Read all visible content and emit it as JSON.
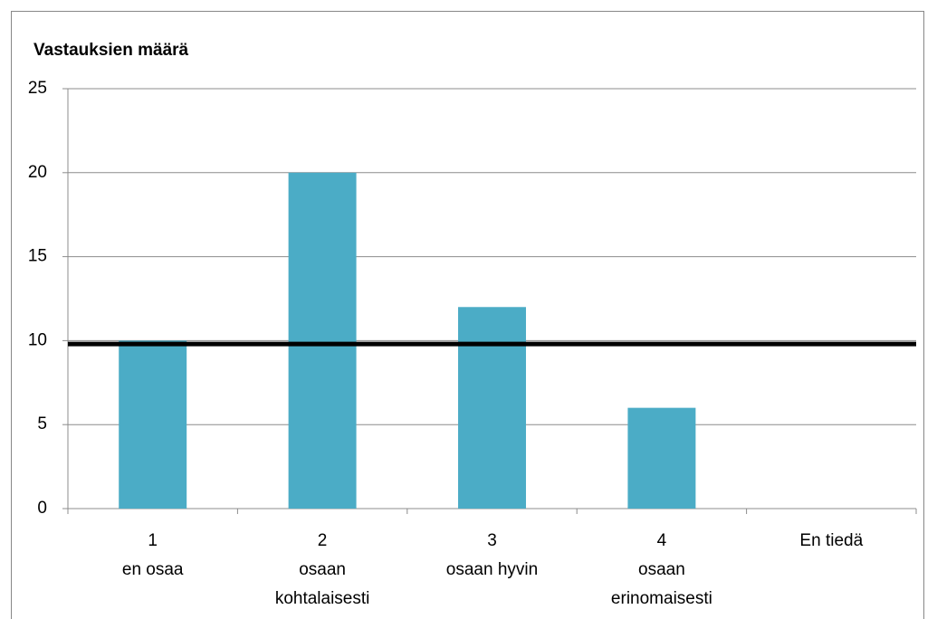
{
  "chart_data": {
    "type": "bar",
    "title": "Vastauksien määrä",
    "categories": [
      [
        "1",
        "en osaa"
      ],
      [
        "2",
        "osaan",
        "kohtalaisesti"
      ],
      [
        "3",
        "osaan hyvin"
      ],
      [
        "4",
        "osaan",
        "erinomaisesti"
      ],
      [
        "En tiedä"
      ]
    ],
    "values": [
      10,
      20,
      12,
      6,
      0
    ],
    "color": "#4bacc6",
    "reference_line": 9.8,
    "reference_color": "#000000",
    "ylim": [
      0,
      25
    ],
    "yticks": [
      0,
      5,
      10,
      15,
      20,
      25
    ],
    "grid": true
  }
}
